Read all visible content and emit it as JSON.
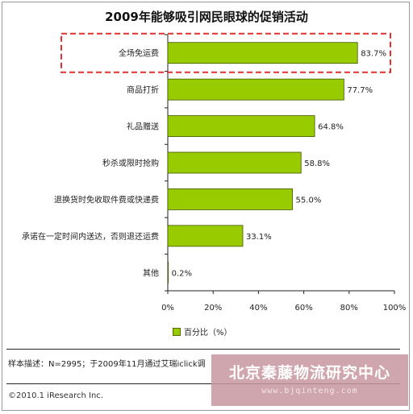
{
  "chart_data": {
    "type": "bar",
    "orientation": "horizontal",
    "title": "2009年能够吸引网民眼球的促销活动",
    "categories": [
      "全场免运费",
      "商品打折",
      "礼品赠送",
      "秒杀或限时抢购",
      "退换货时免收取件费或快递费",
      "承诺在一定时间内送达，否则退还运费",
      "其他"
    ],
    "values": [
      83.7,
      77.7,
      64.8,
      58.8,
      55.0,
      33.1,
      0.2
    ],
    "value_labels": [
      "83.7%",
      "77.7%",
      "64.8%",
      "58.8%",
      "55.0%",
      "33.1%",
      "0.2%"
    ],
    "series": [
      {
        "name": "百分比（%）",
        "values": [
          83.7,
          77.7,
          64.8,
          58.8,
          55.0,
          33.1,
          0.2
        ]
      }
    ],
    "xlim": [
      0,
      100
    ],
    "x_ticks": [
      "0%",
      "20%",
      "40%",
      "60%",
      "80%",
      "100%"
    ],
    "highlighted_category": "全场免运费",
    "legend_position": "bottom",
    "grid": false,
    "bar_color": "#99cc00",
    "highlight_color": "#e03030"
  },
  "legend": {
    "label": "百分比（%）"
  },
  "note": "样本描述：N=2995；于2009年11月通过艾瑞iclick调",
  "copyright": "©2010.1 iResearch Inc.",
  "watermark": {
    "name": "北京秦藤物流研究中心",
    "url": "www.bjqinteng.com"
  }
}
